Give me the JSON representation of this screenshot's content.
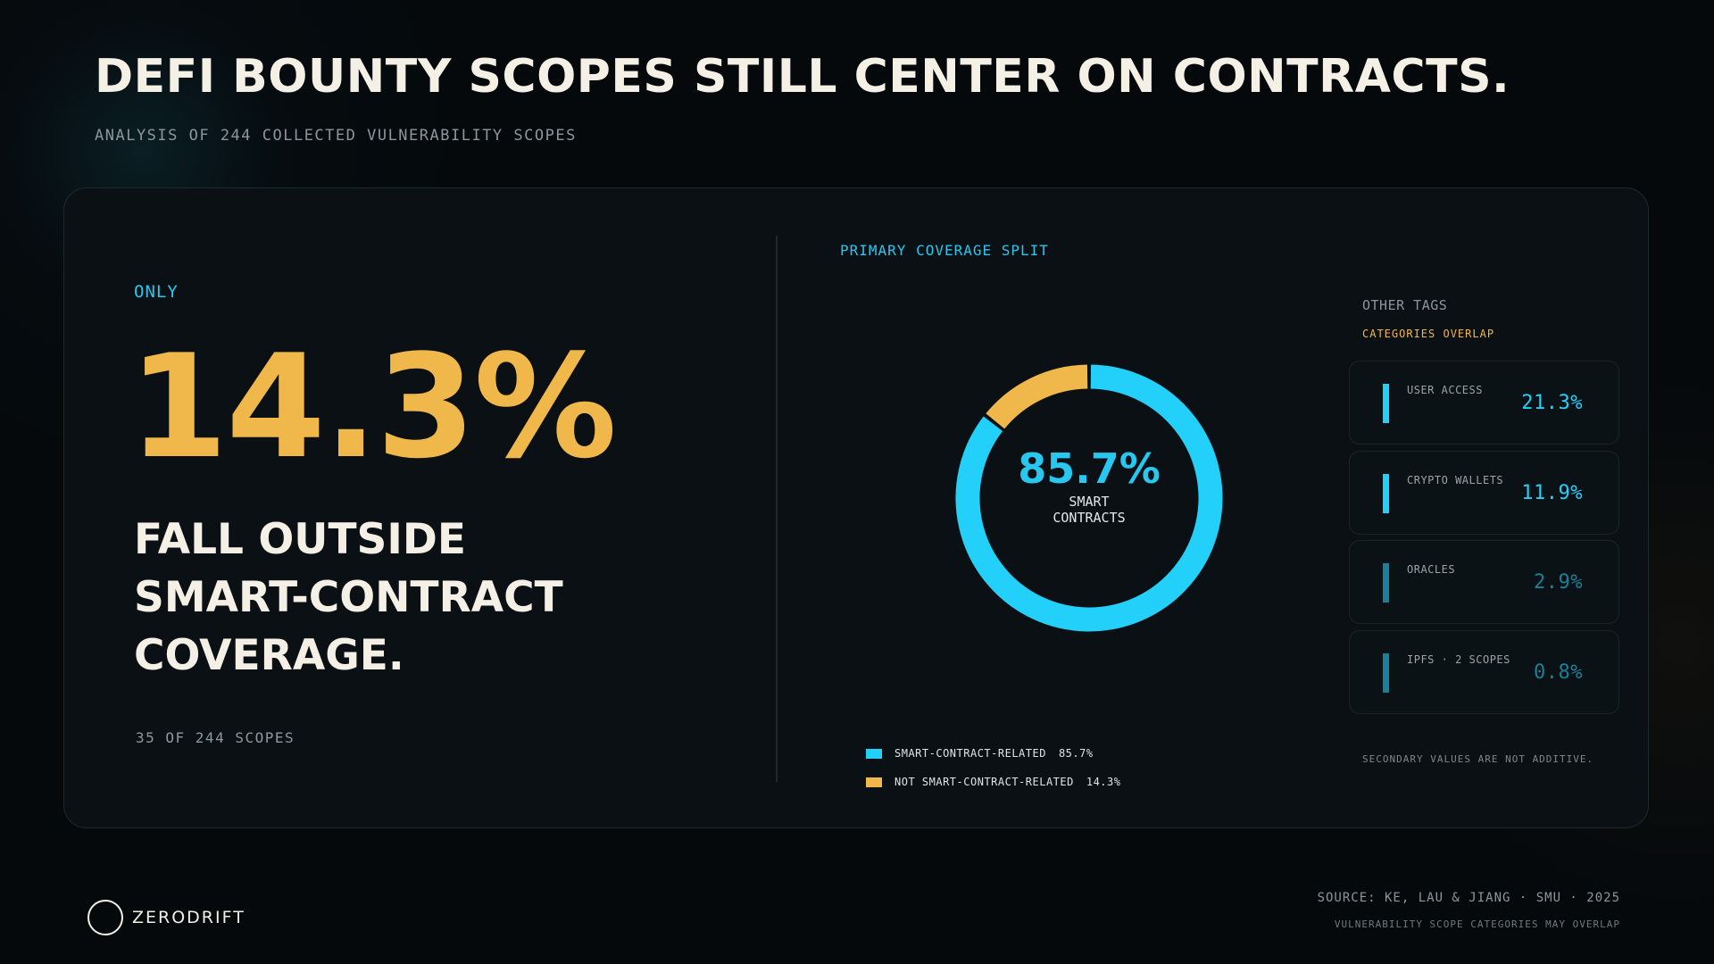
{
  "header": {
    "title": "DEFI BOUNTY SCOPES STILL CENTER ON CONTRACTS.",
    "subtitle": "ANALYSIS OF 244 COLLECTED VULNERABILITY SCOPES"
  },
  "stat": {
    "prefix": "ONLY",
    "value": "14.3%",
    "caption_lines": [
      "FALL OUTSIDE",
      "SMART-CONTRACT",
      "COVERAGE."
    ],
    "count": "35 OF 244 SCOPES"
  },
  "chart_data": {
    "type": "pie",
    "title": "PRIMARY COVERAGE SPLIT",
    "center_value": "85.7%",
    "center_label_lines": [
      "SMART",
      "CONTRACTS"
    ],
    "categories": [
      "SMART-CONTRACT-RELATED",
      "NOT SMART-CONTRACT-RELATED"
    ],
    "values": [
      85.7,
      14.3
    ],
    "value_labels": [
      "85.7%",
      "14.3%"
    ],
    "colors": [
      "#22d0fa",
      "#f0b84a"
    ],
    "legend_position": "bottom"
  },
  "other_tags": {
    "heading": "OTHER TAGS",
    "subheading": "CATEGORIES OVERLAP",
    "items": [
      {
        "label": "USER ACCESS",
        "value": "21.3%",
        "color": "#22d0fa"
      },
      {
        "label": "CRYPTO WALLETS",
        "value": "11.9%",
        "color": "#22d0fa"
      },
      {
        "label": "ORACLES",
        "value": "2.9%",
        "color": "#1a7f98"
      },
      {
        "label": "IPFS · 2 SCOPES",
        "value": "0.8%",
        "color": "#1a7f98"
      }
    ],
    "note": "SECONDARY VALUES ARE NOT ADDITIVE."
  },
  "footer": {
    "logo_text": "ZERODRIFT",
    "source": "SOURCE: KE, LAU & JIANG · SMU · 2025",
    "note": "VULNERABILITY SCOPE CATEGORIES MAY OVERLAP"
  },
  "colors": {
    "accent_cyan": "#27c7ef",
    "accent_gold": "#f0b84a",
    "background": "#05090c",
    "panel": "#0a1014"
  }
}
